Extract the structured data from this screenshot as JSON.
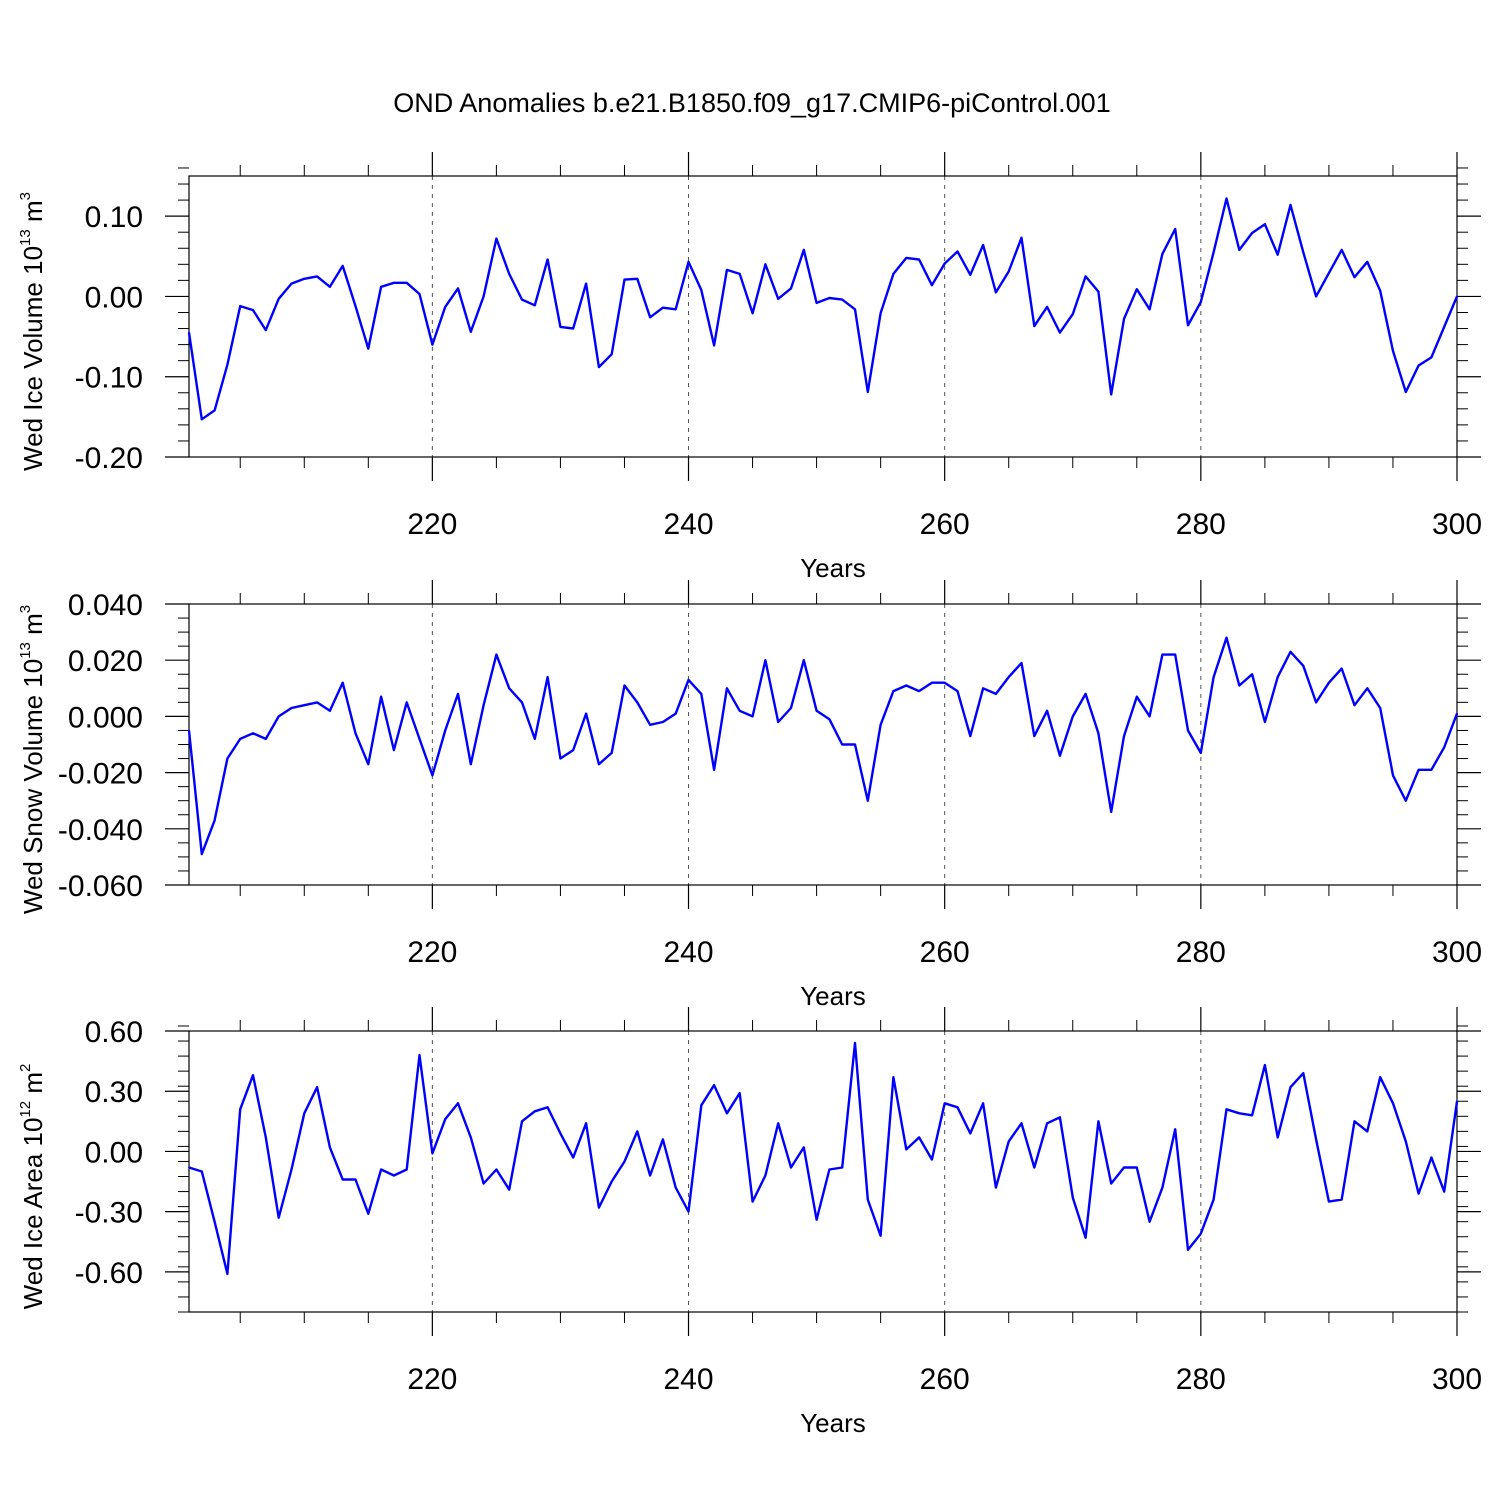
{
  "figure": {
    "title": "OND Anomalies b.e21.B1850.f09_g17.CMIP6-piControl.001"
  },
  "chart_data": [
    {
      "type": "line",
      "title": "OND Anomalies b.e21.B1850.f09_g17.CMIP6-piControl.001",
      "ylabel": {
        "prefix": "Wed Ice Volume 10",
        "exp1": "13",
        "unit": " m",
        "exp2": "3"
      },
      "xlabel": "Years",
      "xlim": [
        201,
        300
      ],
      "ylim": [
        -0.2,
        0.15
      ],
      "yticks": [
        -0.2,
        -0.1,
        0.0,
        0.1
      ],
      "ytick_labels": [
        "-0.20",
        "-0.10",
        "0.00",
        "0.10"
      ],
      "yminor_step": 0.02,
      "xticks": [
        220,
        240,
        260,
        280,
        300
      ],
      "xtick_labels": [
        "220",
        "240",
        "260",
        "280",
        "300"
      ],
      "x_start": 201,
      "color": "#0000ff",
      "series": [
        {
          "name": "Wed Ice Volume",
          "values": [
            -0.045,
            -0.153,
            -0.142,
            -0.085,
            -0.012,
            -0.017,
            -0.042,
            -0.003,
            0.016,
            0.022,
            0.025,
            0.012,
            0.038,
            -0.012,
            -0.065,
            0.012,
            0.017,
            0.017,
            0.003,
            -0.06,
            -0.013,
            0.01,
            -0.044,
            0.0,
            0.072,
            0.028,
            -0.004,
            -0.011,
            0.046,
            -0.038,
            -0.04,
            0.016,
            -0.088,
            -0.072,
            0.021,
            0.022,
            -0.026,
            -0.014,
            -0.016,
            0.043,
            0.008,
            -0.061,
            0.033,
            0.028,
            -0.021,
            0.04,
            -0.003,
            0.01,
            0.058,
            -0.008,
            -0.002,
            -0.004,
            -0.016,
            -0.119,
            -0.021,
            0.028,
            0.048,
            0.046,
            0.014,
            0.041,
            0.056,
            0.027,
            0.064,
            0.005,
            0.031,
            0.073,
            -0.037,
            -0.013,
            -0.045,
            -0.022,
            0.025,
            0.006,
            -0.122,
            -0.028,
            0.009,
            -0.016,
            0.053,
            0.084,
            -0.036,
            -0.007,
            0.055,
            0.122,
            0.058,
            0.079,
            0.09,
            0.052,
            0.114,
            0.055,
            0.0,
            0.029,
            0.058,
            0.024,
            0.043,
            0.007,
            -0.068,
            -0.119,
            -0.086,
            -0.076,
            -0.038,
            0.0
          ]
        }
      ]
    },
    {
      "type": "line",
      "ylabel": {
        "prefix": "Wed Snow Volume 10",
        "exp1": "13",
        "unit": " m",
        "exp2": "3"
      },
      "xlabel": "Years",
      "xlim": [
        201,
        300
      ],
      "ylim": [
        -0.06,
        0.04
      ],
      "yticks": [
        -0.06,
        -0.04,
        -0.02,
        0.0,
        0.02,
        0.04
      ],
      "ytick_labels": [
        "-0.060",
        "-0.040",
        "-0.020",
        "0.000",
        "0.020",
        "0.040"
      ],
      "yminor_step": 0.005,
      "xticks": [
        220,
        240,
        260,
        280,
        300
      ],
      "xtick_labels": [
        "220",
        "240",
        "260",
        "280",
        "300"
      ],
      "x_start": 201,
      "color": "#0000ff",
      "series": [
        {
          "name": "Wed Snow Volume",
          "values": [
            -0.005,
            -0.049,
            -0.037,
            -0.015,
            -0.008,
            -0.006,
            -0.008,
            0.0,
            0.003,
            0.004,
            0.005,
            0.002,
            0.012,
            -0.006,
            -0.017,
            0.007,
            -0.012,
            0.005,
            -0.008,
            -0.021,
            -0.005,
            0.008,
            -0.017,
            0.004,
            0.022,
            0.01,
            0.005,
            -0.008,
            0.014,
            -0.015,
            -0.012,
            0.001,
            -0.017,
            -0.013,
            0.011,
            0.005,
            -0.003,
            -0.002,
            0.001,
            0.013,
            0.008,
            -0.019,
            0.01,
            0.002,
            0.0,
            0.02,
            -0.002,
            0.003,
            0.02,
            0.002,
            -0.001,
            -0.01,
            -0.01,
            -0.03,
            -0.003,
            0.009,
            0.011,
            0.009,
            0.012,
            0.012,
            0.009,
            -0.007,
            0.01,
            0.008,
            0.014,
            0.019,
            -0.007,
            0.002,
            -0.014,
            0.0,
            0.008,
            -0.006,
            -0.034,
            -0.007,
            0.007,
            0.0,
            0.022,
            0.022,
            -0.005,
            -0.013,
            0.014,
            0.028,
            0.011,
            0.015,
            -0.002,
            0.014,
            0.023,
            0.018,
            0.005,
            0.012,
            0.017,
            0.004,
            0.01,
            0.003,
            -0.021,
            -0.03,
            -0.019,
            -0.019,
            -0.011,
            0.001
          ]
        }
      ]
    },
    {
      "type": "line",
      "ylabel": {
        "prefix": "Wed Ice Area 10",
        "exp1": "12",
        "unit": " m",
        "exp2": "2"
      },
      "xlabel": "Years",
      "xlim": [
        201,
        300
      ],
      "ylim": [
        -0.8,
        0.6
      ],
      "yticks": [
        -0.6,
        -0.3,
        0.0,
        0.3,
        0.6
      ],
      "ytick_labels": [
        "-0.60",
        "-0.30",
        "0.00",
        "0.30",
        "0.60"
      ],
      "yminor_step": 0.075,
      "xticks": [
        220,
        240,
        260,
        280,
        300
      ],
      "xtick_labels": [
        "220",
        "240",
        "260",
        "280",
        "300"
      ],
      "x_start": 201,
      "color": "#0000ff",
      "series": [
        {
          "name": "Wed Ice Area",
          "values": [
            -0.08,
            -0.1,
            -0.35,
            -0.61,
            0.21,
            0.38,
            0.07,
            -0.33,
            -0.09,
            0.19,
            0.32,
            0.02,
            -0.14,
            -0.14,
            -0.31,
            -0.09,
            -0.12,
            -0.09,
            0.48,
            -0.01,
            0.16,
            0.24,
            0.07,
            -0.16,
            -0.09,
            -0.19,
            0.15,
            0.2,
            0.22,
            0.09,
            -0.03,
            0.14,
            -0.28,
            -0.15,
            -0.05,
            0.1,
            -0.12,
            0.06,
            -0.18,
            -0.3,
            0.23,
            0.33,
            0.19,
            0.29,
            -0.25,
            -0.12,
            0.14,
            -0.08,
            0.02,
            -0.34,
            -0.09,
            -0.08,
            0.54,
            -0.24,
            -0.42,
            0.37,
            0.01,
            0.07,
            -0.04,
            0.24,
            0.22,
            0.09,
            0.24,
            -0.18,
            0.05,
            0.14,
            -0.08,
            0.14,
            0.17,
            -0.23,
            -0.43,
            0.15,
            -0.16,
            -0.08,
            -0.08,
            -0.35,
            -0.18,
            0.11,
            -0.49,
            -0.41,
            -0.24,
            0.21,
            0.19,
            0.18,
            0.43,
            0.07,
            0.32,
            0.39,
            0.06,
            -0.25,
            -0.24,
            0.15,
            0.1,
            0.37,
            0.24,
            0.05,
            -0.21,
            -0.03,
            -0.2,
            0.25
          ]
        }
      ]
    }
  ]
}
